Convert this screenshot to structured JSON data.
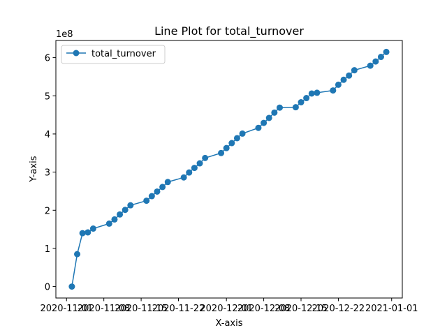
{
  "chart_data": {
    "type": "line",
    "title": "Line Plot for total_turnover",
    "xlabel": "X-axis",
    "ylabel": "Y-axis",
    "y_multiplier_label": "1e8",
    "legend_position": "upper-left",
    "grid": false,
    "line_color": "#1f77b4",
    "marker": "circle",
    "xlim": [
      "2020-10-30",
      "2021-01-03"
    ],
    "ylim": [
      -0.3,
      6.45
    ],
    "x_ticks": [
      {
        "label": "2020-11-01",
        "date": "2020-11-01"
      },
      {
        "label": "2020-11-08",
        "date": "2020-11-08"
      },
      {
        "label": "2020-11-15",
        "date": "2020-11-15"
      },
      {
        "label": "2020-11-22",
        "date": "2020-11-22"
      },
      {
        "label": "2020-12-01",
        "date": "2020-12-01"
      },
      {
        "label": "2020-12-08",
        "date": "2020-12-08"
      },
      {
        "label": "2020-12-15",
        "date": "2020-12-15"
      },
      {
        "label": "2020-12-22",
        "date": "2020-12-22"
      },
      {
        "label": "2021-01-01",
        "date": "2021-01-01"
      }
    ],
    "y_ticks": [
      {
        "label": "0",
        "value": 0
      },
      {
        "label": "1",
        "value": 1
      },
      {
        "label": "2",
        "value": 2
      },
      {
        "label": "3",
        "value": 3
      },
      {
        "label": "4",
        "value": 4
      },
      {
        "label": "5",
        "value": 5
      },
      {
        "label": "6",
        "value": 6
      }
    ],
    "series": [
      {
        "name": "total_turnover",
        "x": [
          "2020-11-02",
          "2020-11-03",
          "2020-11-04",
          "2020-11-05",
          "2020-11-06",
          "2020-11-09",
          "2020-11-10",
          "2020-11-11",
          "2020-11-12",
          "2020-11-13",
          "2020-11-16",
          "2020-11-17",
          "2020-11-18",
          "2020-11-19",
          "2020-11-20",
          "2020-11-23",
          "2020-11-24",
          "2020-11-25",
          "2020-11-26",
          "2020-11-27",
          "2020-11-30",
          "2020-12-01",
          "2020-12-02",
          "2020-12-03",
          "2020-12-04",
          "2020-12-07",
          "2020-12-08",
          "2020-12-09",
          "2020-12-10",
          "2020-12-11",
          "2020-12-14",
          "2020-12-15",
          "2020-12-16",
          "2020-12-17",
          "2020-12-18",
          "2020-12-21",
          "2020-12-22",
          "2020-12-23",
          "2020-12-24",
          "2020-12-25",
          "2020-12-28",
          "2020-12-29",
          "2020-12-30",
          "2020-12-31"
        ],
        "values": [
          0.0,
          0.85,
          1.4,
          1.42,
          1.52,
          1.65,
          1.76,
          1.89,
          2.01,
          2.13,
          2.25,
          2.37,
          2.49,
          2.61,
          2.74,
          2.86,
          2.99,
          3.11,
          3.23,
          3.37,
          3.5,
          3.63,
          3.76,
          3.89,
          4.01,
          4.16,
          4.29,
          4.42,
          4.56,
          4.69,
          4.7,
          4.83,
          4.94,
          5.06,
          5.08,
          5.14,
          5.29,
          5.42,
          5.53,
          5.67,
          5.79,
          5.9,
          6.02,
          6.15
        ]
      }
    ]
  }
}
